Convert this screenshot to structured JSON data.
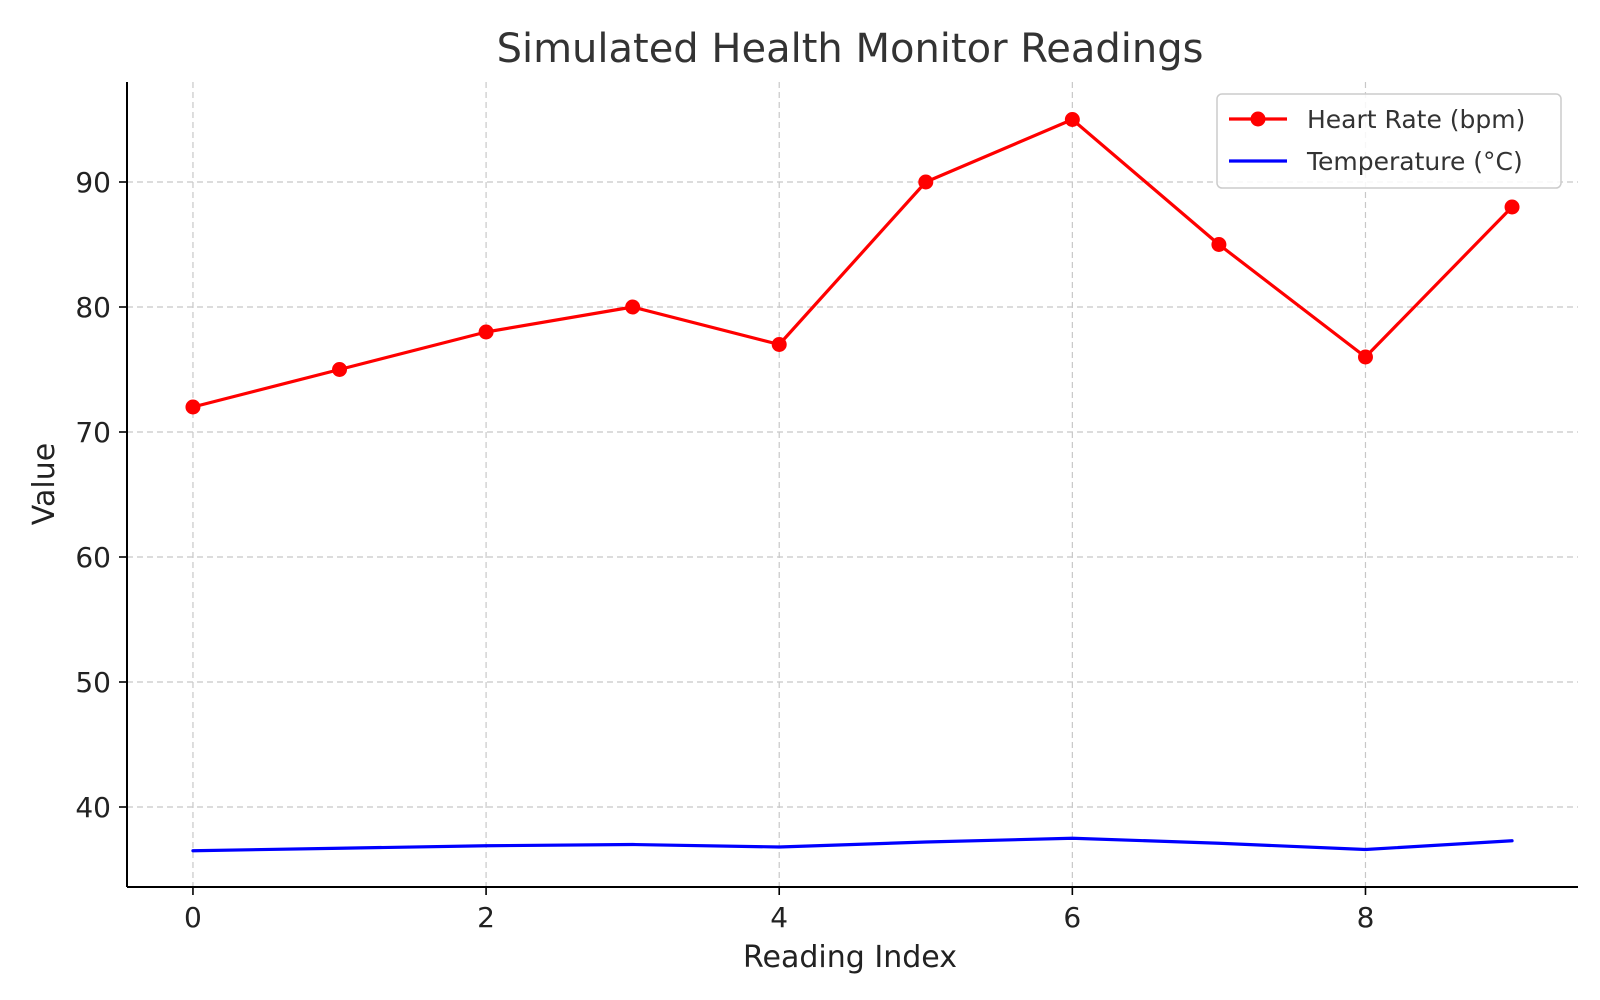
{
  "chart_data": {
    "type": "line",
    "title": "Simulated Health Monitor Readings",
    "xlabel": "Reading Index",
    "ylabel": "Value",
    "x": [
      0,
      1,
      2,
      3,
      4,
      5,
      6,
      7,
      8,
      9
    ],
    "xlim": [
      -0.45,
      9.45
    ],
    "ylim": [
      33.6,
      98.0
    ],
    "xticks": [
      0,
      2,
      4,
      6,
      8
    ],
    "yticks": [
      40,
      50,
      60,
      70,
      80,
      90
    ],
    "grid": true,
    "legend_position": "top-right",
    "series": [
      {
        "name": "Heart Rate (bpm)",
        "color": "#ff0000",
        "marker": "circle",
        "values": [
          72,
          75,
          78,
          80,
          77,
          90,
          95,
          85,
          76,
          88
        ]
      },
      {
        "name": "Temperature (°C)",
        "color": "#0000ff",
        "marker": "none",
        "values": [
          36.5,
          36.7,
          36.9,
          37.0,
          36.8,
          37.2,
          37.5,
          37.1,
          36.6,
          37.3
        ]
      }
    ]
  }
}
